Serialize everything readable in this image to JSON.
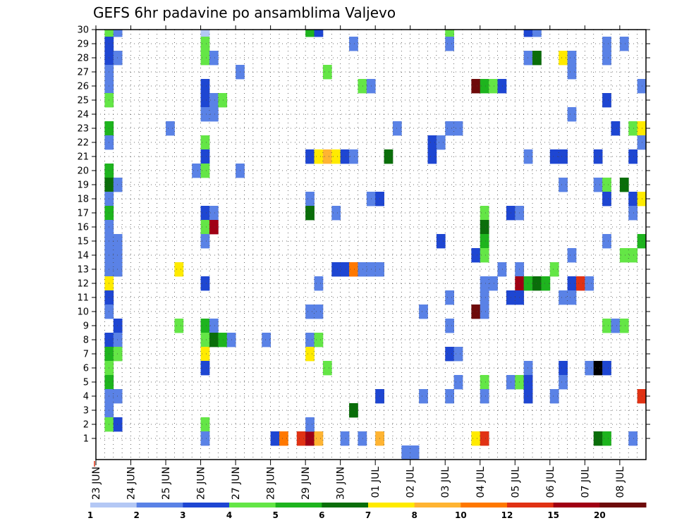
{
  "chart_data": {
    "type": "heatmap",
    "title": "GEFS 6hr padavine po ansamblima Valjevo",
    "xlabel": "",
    "ylabel": "",
    "y_ticks": [
      1,
      2,
      3,
      4,
      5,
      6,
      7,
      8,
      9,
      10,
      11,
      12,
      13,
      14,
      15,
      16,
      17,
      18,
      19,
      20,
      21,
      22,
      23,
      24,
      25,
      26,
      27,
      28,
      29,
      30
    ],
    "x_tick_labels": [
      "23 JUN",
      "24 JUN",
      "25 JUN",
      "26 JUN",
      "27 JUN",
      "28 JUN",
      "29 JUN",
      "30 JUN",
      "01 JUL",
      "02 JUL",
      "03 JUL",
      "04 JUL",
      "05 JUL",
      "06 JUL",
      "07 JUL",
      "08 JUL"
    ],
    "grid": true,
    "legend": {
      "placement": "bottom",
      "labels": [
        "1",
        "2",
        "3",
        "4",
        "5",
        "6",
        "7",
        "8",
        "10",
        "12",
        "15",
        "20"
      ],
      "colors": [
        "#b4c8f5",
        "#5a82e6",
        "#1e46d2",
        "#64e646",
        "#1eb41e",
        "#0a6e0a",
        "#ffeb00",
        "#ffb432",
        "#ff7800",
        "#e13214",
        "#a00014",
        "#6e0a0a"
      ]
    },
    "cells": [
      [
        1,
        30,
        3
      ],
      [
        1,
        29,
        2
      ],
      [
        1,
        28,
        2
      ],
      [
        1,
        27,
        1
      ],
      [
        1,
        26,
        1
      ],
      [
        1,
        25,
        3
      ],
      [
        1,
        23,
        4
      ],
      [
        1,
        22,
        1
      ],
      [
        1,
        20,
        4
      ],
      [
        1,
        19,
        5
      ],
      [
        1,
        18,
        1
      ],
      [
        1,
        17,
        4
      ],
      [
        1,
        16,
        1
      ],
      [
        1,
        15,
        1
      ],
      [
        1,
        14,
        1
      ],
      [
        1,
        13,
        1
      ],
      [
        1,
        12,
        6
      ],
      [
        1,
        11,
        2
      ],
      [
        1,
        10,
        1
      ],
      [
        1,
        8,
        2
      ],
      [
        1,
        7,
        4
      ],
      [
        1,
        6,
        3
      ],
      [
        1,
        5,
        4
      ],
      [
        1,
        4,
        1
      ],
      [
        1,
        3,
        1
      ],
      [
        1,
        2,
        3
      ],
      [
        2,
        30,
        1
      ],
      [
        2,
        28,
        1
      ],
      [
        2,
        19,
        1
      ],
      [
        2,
        15,
        1
      ],
      [
        2,
        14,
        1
      ],
      [
        2,
        13,
        1
      ],
      [
        2,
        9,
        2
      ],
      [
        2,
        8,
        1
      ],
      [
        2,
        7,
        3
      ],
      [
        2,
        4,
        1
      ],
      [
        2,
        2,
        2
      ],
      [
        8,
        23,
        1
      ],
      [
        9,
        13,
        6
      ],
      [
        9,
        9,
        3
      ],
      [
        11,
        20,
        1
      ],
      [
        12,
        30,
        0
      ],
      [
        12,
        29,
        3
      ],
      [
        12,
        28,
        3
      ],
      [
        12,
        26,
        2
      ],
      [
        12,
        25,
        2
      ],
      [
        12,
        24,
        1
      ],
      [
        12,
        22,
        3
      ],
      [
        12,
        21,
        2
      ],
      [
        12,
        20,
        3
      ],
      [
        12,
        17,
        2
      ],
      [
        12,
        16,
        3
      ],
      [
        12,
        15,
        1
      ],
      [
        12,
        12,
        2
      ],
      [
        12,
        9,
        4
      ],
      [
        12,
        8,
        3
      ],
      [
        12,
        7,
        6
      ],
      [
        12,
        6,
        2
      ],
      [
        12,
        2,
        3
      ],
      [
        12,
        1,
        1
      ],
      [
        13,
        28,
        1
      ],
      [
        13,
        25,
        1
      ],
      [
        13,
        24,
        1
      ],
      [
        13,
        17,
        1
      ],
      [
        13,
        16,
        10
      ],
      [
        13,
        9,
        1
      ],
      [
        13,
        8,
        5
      ],
      [
        14,
        25,
        3
      ],
      [
        14,
        8,
        4
      ],
      [
        15,
        8,
        1
      ],
      [
        16,
        27,
        1
      ],
      [
        16,
        20,
        1
      ],
      [
        19,
        8,
        1
      ],
      [
        20,
        1,
        2
      ],
      [
        21,
        1,
        8
      ],
      [
        23,
        1,
        9
      ],
      [
        24,
        1,
        10
      ],
      [
        24,
        30,
        4
      ],
      [
        24,
        21,
        2
      ],
      [
        24,
        18,
        1
      ],
      [
        24,
        17,
        5
      ],
      [
        24,
        10,
        1
      ],
      [
        24,
        8,
        1
      ],
      [
        24,
        7,
        6
      ],
      [
        24,
        2,
        1
      ],
      [
        25,
        30,
        2
      ],
      [
        25,
        21,
        6
      ],
      [
        25,
        12,
        1
      ],
      [
        25,
        10,
        1
      ],
      [
        25,
        1,
        7
      ],
      [
        25,
        8,
        3
      ],
      [
        26,
        27,
        3
      ],
      [
        26,
        21,
        7
      ],
      [
        26,
        6,
        3
      ],
      [
        27,
        21,
        6
      ],
      [
        27,
        17,
        1
      ],
      [
        27,
        13,
        2
      ],
      [
        28,
        21,
        2
      ],
      [
        28,
        13,
        2
      ],
      [
        28,
        1,
        1
      ],
      [
        29,
        29,
        1
      ],
      [
        29,
        21,
        1
      ],
      [
        29,
        13,
        8
      ],
      [
        29,
        3,
        5
      ],
      [
        30,
        26,
        3
      ],
      [
        30,
        13,
        1
      ],
      [
        30,
        1,
        1
      ],
      [
        31,
        26,
        1
      ],
      [
        31,
        13,
        1
      ],
      [
        31,
        18,
        1
      ],
      [
        32,
        18,
        2
      ],
      [
        32,
        13,
        1
      ],
      [
        32,
        4,
        2
      ],
      [
        32,
        1,
        7
      ],
      [
        33,
        21,
        5
      ],
      [
        34,
        23,
        1
      ],
      [
        35,
        0,
        1
      ],
      [
        36,
        0,
        1
      ],
      [
        37,
        4,
        1
      ],
      [
        37,
        10,
        1
      ],
      [
        38,
        22,
        2
      ],
      [
        38,
        21,
        2
      ],
      [
        39,
        15,
        2
      ],
      [
        39,
        22,
        1
      ],
      [
        40,
        30,
        3
      ],
      [
        40,
        29,
        1
      ],
      [
        40,
        23,
        1
      ],
      [
        40,
        11,
        1
      ],
      [
        40,
        9,
        1
      ],
      [
        40,
        7,
        2
      ],
      [
        40,
        4,
        1
      ],
      [
        41,
        23,
        1
      ],
      [
        41,
        7,
        1
      ],
      [
        41,
        5,
        1
      ],
      [
        43,
        26,
        11
      ],
      [
        43,
        14,
        2
      ],
      [
        43,
        10,
        11
      ],
      [
        43,
        1,
        6
      ],
      [
        44,
        26,
        4
      ],
      [
        44,
        17,
        3
      ],
      [
        44,
        16,
        5
      ],
      [
        44,
        15,
        4
      ],
      [
        44,
        14,
        3
      ],
      [
        44,
        12,
        1
      ],
      [
        44,
        11,
        1
      ],
      [
        44,
        10,
        1
      ],
      [
        44,
        5,
        3
      ],
      [
        44,
        4,
        1
      ],
      [
        44,
        1,
        9
      ],
      [
        45,
        26,
        3
      ],
      [
        45,
        12,
        1
      ],
      [
        46,
        26,
        2
      ],
      [
        46,
        13,
        1
      ],
      [
        47,
        17,
        2
      ],
      [
        47,
        11,
        2
      ],
      [
        47,
        5,
        1
      ],
      [
        48,
        17,
        1
      ],
      [
        48,
        13,
        1
      ],
      [
        48,
        12,
        10
      ],
      [
        48,
        11,
        2
      ],
      [
        48,
        5,
        3
      ],
      [
        49,
        30,
        2
      ],
      [
        49,
        28,
        1
      ],
      [
        49,
        21,
        1
      ],
      [
        49,
        12,
        4
      ],
      [
        49,
        6,
        1
      ],
      [
        49,
        5,
        2
      ],
      [
        49,
        4,
        2
      ],
      [
        50,
        30,
        1
      ],
      [
        50,
        28,
        5
      ],
      [
        50,
        12,
        5
      ],
      [
        51,
        12,
        4
      ],
      [
        52,
        13,
        3
      ],
      [
        52,
        21,
        2
      ],
      [
        52,
        4,
        1
      ],
      [
        53,
        28,
        6
      ],
      [
        53,
        21,
        2
      ],
      [
        53,
        19,
        1
      ],
      [
        53,
        11,
        1
      ],
      [
        53,
        6,
        2
      ],
      [
        53,
        5,
        1
      ],
      [
        54,
        28,
        1
      ],
      [
        54,
        27,
        1
      ],
      [
        54,
        24,
        1
      ],
      [
        54,
        14,
        1
      ],
      [
        54,
        12,
        2
      ],
      [
        54,
        11,
        1
      ],
      [
        55,
        12,
        9
      ],
      [
        56,
        12,
        1
      ],
      [
        56,
        6,
        1
      ],
      [
        57,
        21,
        2
      ],
      [
        57,
        19,
        1
      ],
      [
        57,
        6,
        12
      ],
      [
        57,
        1,
        5
      ],
      [
        58,
        29,
        1
      ],
      [
        58,
        28,
        1
      ],
      [
        58,
        25,
        2
      ],
      [
        58,
        19,
        3
      ],
      [
        58,
        18,
        2
      ],
      [
        58,
        15,
        1
      ],
      [
        58,
        9,
        3
      ],
      [
        58,
        6,
        2
      ],
      [
        58,
        1,
        4
      ],
      [
        59,
        23,
        2
      ],
      [
        59,
        9,
        1
      ],
      [
        60,
        29,
        1
      ],
      [
        60,
        19,
        5
      ],
      [
        60,
        14,
        3
      ],
      [
        60,
        9,
        3
      ],
      [
        61,
        23,
        3
      ],
      [
        61,
        21,
        2
      ],
      [
        61,
        18,
        2
      ],
      [
        61,
        17,
        1
      ],
      [
        61,
        14,
        3
      ],
      [
        61,
        1,
        1
      ],
      [
        62,
        26,
        1
      ],
      [
        62,
        23,
        6
      ],
      [
        62,
        22,
        1
      ],
      [
        62,
        18,
        6
      ],
      [
        62,
        15,
        4
      ],
      [
        62,
        4,
        9
      ]
    ]
  }
}
